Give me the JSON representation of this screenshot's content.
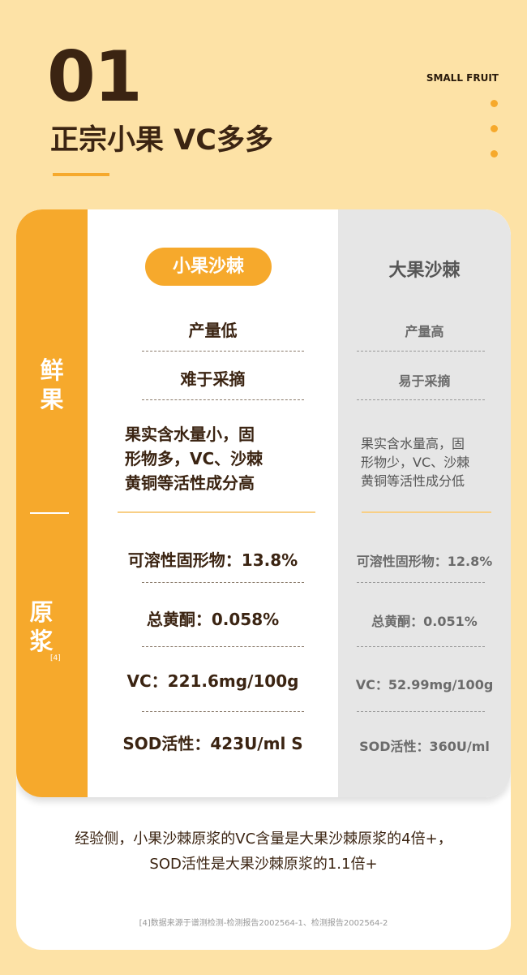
{
  "header": {
    "number": "01",
    "title": "正宗小果 VC多多",
    "tag": "SMALL FRUIT",
    "accent": "#f6a92c"
  },
  "table": {
    "col_small": "小果沙棘",
    "col_large": "大果沙棘",
    "section_fresh": [
      "鲜",
      "果"
    ],
    "section_juice": [
      "原",
      "浆"
    ],
    "juice_ref": "[4]",
    "fresh_rows": [
      {
        "small": "产量低",
        "large": "产量高"
      },
      {
        "small": "难于采摘",
        "large": "易于采摘"
      },
      {
        "small": "果实含水量小，固\n形物多，VC、沙棘\n黄铜等活性成分高",
        "large": "果实含水量高，固\n形物少，VC、沙棘\n黄铜等活性成分低"
      }
    ],
    "juice_rows": [
      {
        "small": "可溶性固形物：13.8%",
        "large": "可溶性固形物：12.8%"
      },
      {
        "small": "总黄酮：0.058%",
        "large": "总黄酮：0.051%"
      },
      {
        "small": "VC：221.6mg/100g",
        "large": "VC：52.99mg/100g"
      },
      {
        "small": "SOD活性：423U/ml S",
        "large": "SOD活性：360U/ml"
      }
    ]
  },
  "conclusion": [
    "经验侧，小果沙棘原浆的VC含量是大果沙棘原浆的4倍+，",
    "SOD活性是大果沙棘原浆的1.1倍+"
  ],
  "footnote": "[4]数据来源于谱测检测-检测报告2002564-1、检测报告2002564-2"
}
